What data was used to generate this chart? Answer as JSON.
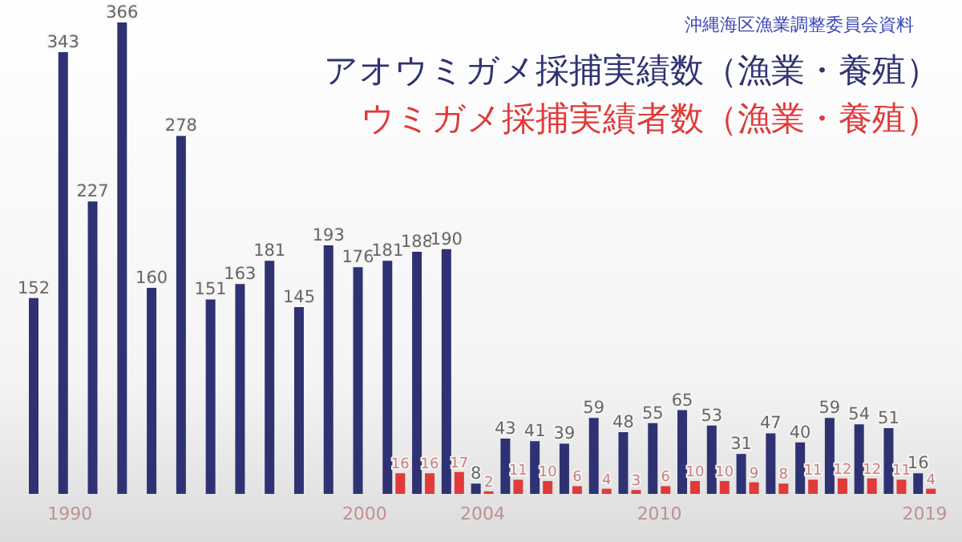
{
  "chart_data": {
    "type": "bar",
    "categories": [
      null,
      "1990",
      null,
      null,
      null,
      null,
      null,
      null,
      null,
      null,
      null,
      "2000",
      null,
      null,
      null,
      "2004",
      null,
      null,
      null,
      null,
      null,
      "2010",
      null,
      null,
      null,
      null,
      null,
      null,
      null,
      null,
      "2019"
    ],
    "series": [
      {
        "name": "アオウミガメ採捕実績数（漁業・養殖）",
        "color": "#2f3272",
        "values": [
          152,
          343,
          227,
          366,
          160,
          278,
          151,
          163,
          181,
          145,
          193,
          176,
          181,
          188,
          190,
          8,
          43,
          41,
          39,
          59,
          48,
          55,
          65,
          53,
          31,
          47,
          40,
          59,
          54,
          51,
          16
        ]
      },
      {
        "name": "ウミガメ採捕実績者数（漁業・養殖）",
        "color": "#e03a3a",
        "values": [
          null,
          null,
          null,
          null,
          null,
          null,
          null,
          null,
          null,
          null,
          null,
          null,
          16,
          16,
          17,
          2,
          11,
          10,
          6,
          4,
          3,
          6,
          10,
          10,
          9,
          8,
          11,
          12,
          12,
          11,
          4
        ]
      }
    ],
    "data_labels": true,
    "legend": "top right",
    "grid": false,
    "annotations": [
      "沖縄海区漁業調整委員会資料"
    ]
  }
}
